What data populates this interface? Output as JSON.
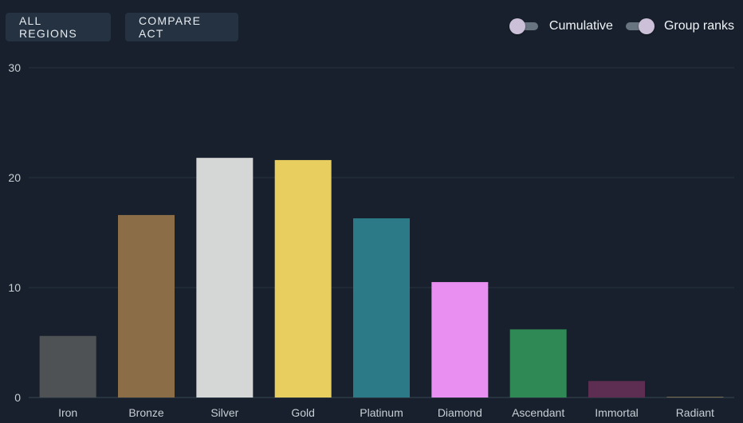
{
  "toolbar": {
    "all_regions_label": "ALL REGIONS",
    "compare_act_label": "COMPARE ACT"
  },
  "toggles": {
    "cumulative": {
      "label": "Cumulative",
      "on": false
    },
    "group_ranks": {
      "label": "Group ranks",
      "on": true
    }
  },
  "chart_data": {
    "type": "bar",
    "categories": [
      "Iron",
      "Bronze",
      "Silver",
      "Gold",
      "Platinum",
      "Diamond",
      "Ascendant",
      "Immortal",
      "Radiant"
    ],
    "values": [
      5.6,
      16.6,
      21.8,
      21.6,
      16.3,
      10.5,
      6.2,
      1.5,
      0.03
    ],
    "colors": [
      "#4f5254",
      "#8b6e47",
      "#d4d7d5",
      "#e8cd5f",
      "#2c7a88",
      "#ea8ff2",
      "#2e8955",
      "#5e2d52",
      "#b9a066"
    ],
    "ylim": [
      0,
      30
    ],
    "yticks": [
      0,
      10,
      20,
      30
    ],
    "grid": true,
    "title": "",
    "xlabel": "",
    "ylabel": ""
  }
}
